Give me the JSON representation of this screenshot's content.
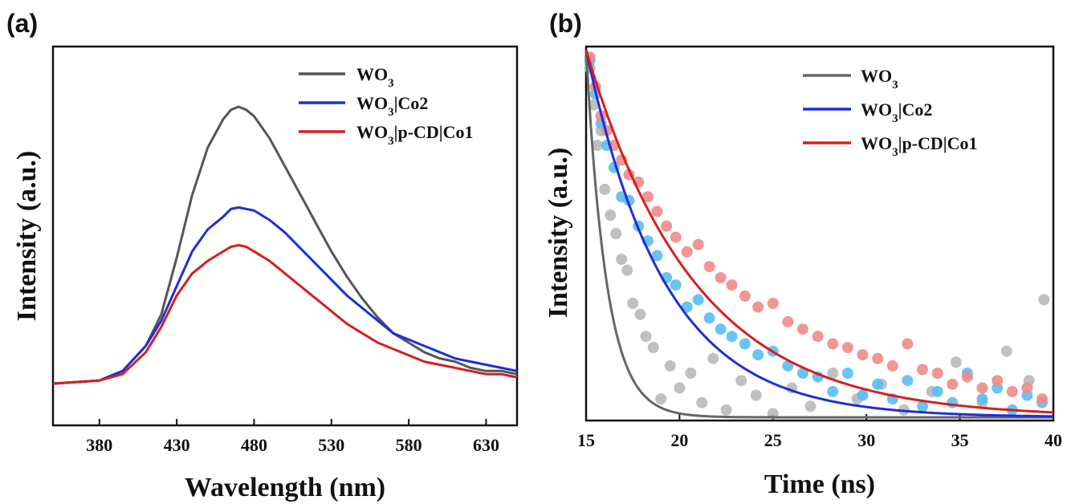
{
  "chart_data": [
    {
      "panel_label": "(a)",
      "type": "line",
      "xlabel": "Wavelength (nm)",
      "ylabel": "Intensity (a.u.)",
      "xlim": [
        350,
        650
      ],
      "ylim": [
        0,
        1.0
      ],
      "xticks": [
        380,
        430,
        480,
        530,
        580,
        630
      ],
      "legend_position": "top-right",
      "series": [
        {
          "name": "WO₃",
          "color": "#555555",
          "x": [
            350,
            380,
            395,
            410,
            420,
            430,
            440,
            450,
            460,
            465,
            470,
            475,
            480,
            490,
            500,
            510,
            520,
            530,
            540,
            550,
            560,
            570,
            580,
            590,
            600,
            610,
            620,
            630,
            640,
            650
          ],
          "y": [
            0.0,
            0.01,
            0.04,
            0.12,
            0.22,
            0.4,
            0.6,
            0.75,
            0.84,
            0.87,
            0.88,
            0.87,
            0.85,
            0.78,
            0.69,
            0.6,
            0.51,
            0.42,
            0.34,
            0.27,
            0.21,
            0.16,
            0.13,
            0.1,
            0.08,
            0.07,
            0.05,
            0.04,
            0.04,
            0.03
          ]
        },
        {
          "name": "WO₃|Co2",
          "color": "#1f2ed6",
          "x": [
            350,
            380,
            395,
            410,
            420,
            430,
            440,
            450,
            460,
            465,
            470,
            475,
            480,
            490,
            500,
            510,
            520,
            530,
            540,
            550,
            560,
            570,
            580,
            590,
            600,
            610,
            620,
            630,
            640,
            650
          ],
          "y": [
            0.0,
            0.01,
            0.04,
            0.12,
            0.2,
            0.31,
            0.42,
            0.49,
            0.53,
            0.555,
            0.56,
            0.555,
            0.55,
            0.52,
            0.48,
            0.43,
            0.38,
            0.33,
            0.28,
            0.24,
            0.2,
            0.16,
            0.14,
            0.12,
            0.1,
            0.08,
            0.07,
            0.06,
            0.05,
            0.04
          ]
        },
        {
          "name": "WO₃|p-CD|Co1",
          "color": "#d61f1f",
          "x": [
            350,
            380,
            395,
            410,
            420,
            430,
            440,
            450,
            460,
            465,
            470,
            475,
            480,
            490,
            500,
            510,
            520,
            530,
            540,
            550,
            560,
            570,
            580,
            590,
            600,
            610,
            620,
            630,
            640,
            650
          ],
          "y": [
            0.0,
            0.01,
            0.03,
            0.1,
            0.18,
            0.28,
            0.35,
            0.39,
            0.42,
            0.435,
            0.44,
            0.435,
            0.42,
            0.39,
            0.35,
            0.31,
            0.27,
            0.23,
            0.19,
            0.16,
            0.13,
            0.11,
            0.09,
            0.07,
            0.06,
            0.05,
            0.04,
            0.03,
            0.03,
            0.02
          ]
        }
      ]
    },
    {
      "panel_label": "(b)",
      "type": "scatter",
      "xlabel": "Time (ns)",
      "ylabel": "Intensity (a.u.)",
      "xlim": [
        15,
        40
      ],
      "ylim": [
        0,
        1.0
      ],
      "xticks": [
        15,
        20,
        25,
        30,
        35,
        40
      ],
      "legend_position": "top-right",
      "series": [
        {
          "name": "WO₃",
          "color": "#666666",
          "point_color": "#b9b9b9",
          "fit_tau": 1.1,
          "x": [
            15.2,
            15.4,
            15.6,
            15.8,
            16.0,
            16.3,
            16.6,
            16.9,
            17.2,
            17.5,
            17.9,
            18.2,
            18.6,
            19.0,
            19.5,
            20.0,
            20.6,
            21.2,
            21.8,
            22.5,
            23.3,
            24.1,
            25.0,
            26.0,
            27.0,
            28.2,
            29.5,
            30.8,
            32.0,
            33.5,
            34.8,
            36.2,
            37.5,
            38.7,
            39.5
          ],
          "y": [
            0.95,
            0.85,
            0.74,
            0.78,
            0.62,
            0.55,
            0.5,
            0.43,
            0.4,
            0.31,
            0.28,
            0.22,
            0.19,
            0.05,
            0.14,
            0.08,
            0.12,
            0.04,
            0.16,
            0.02,
            0.1,
            0.06,
            0.01,
            0.08,
            0.03,
            0.12,
            0.05,
            0.09,
            0.02,
            0.07,
            0.15,
            0.04,
            0.18,
            0.1,
            0.32
          ]
        },
        {
          "name": "WO₃|Co2",
          "color": "#1f2ed6",
          "point_color": "#5bbcf2",
          "fit_tau": 4.2,
          "x": [
            15.2,
            15.5,
            15.8,
            16.1,
            16.5,
            16.9,
            17.3,
            17.8,
            18.3,
            18.8,
            19.3,
            19.8,
            20.4,
            21.0,
            21.6,
            22.2,
            22.8,
            23.5,
            24.2,
            25.0,
            25.8,
            26.6,
            27.4,
            28.2,
            29.0,
            29.8,
            30.6,
            31.4,
            32.2,
            33.0,
            33.8,
            34.6,
            35.4,
            36.2,
            37.0,
            37.8,
            38.6,
            39.4
          ],
          "y": [
            0.97,
            0.88,
            0.8,
            0.74,
            0.68,
            0.6,
            0.59,
            0.52,
            0.48,
            0.44,
            0.38,
            0.36,
            0.3,
            0.32,
            0.27,
            0.24,
            0.22,
            0.2,
            0.17,
            0.18,
            0.14,
            0.12,
            0.11,
            0.07,
            0.12,
            0.06,
            0.09,
            0.05,
            0.1,
            0.03,
            0.07,
            0.04,
            0.12,
            0.05,
            0.08,
            0.02,
            0.06,
            0.04
          ]
        },
        {
          "name": "WO₃|p-CD|Co1",
          "color": "#d61f1f",
          "point_color": "#f08a8a",
          "fit_tau": 5.8,
          "x": [
            15.2,
            15.5,
            15.8,
            16.1,
            16.5,
            16.9,
            17.3,
            17.8,
            18.3,
            18.8,
            19.3,
            19.8,
            20.4,
            21.0,
            21.6,
            22.2,
            22.8,
            23.5,
            24.2,
            25.0,
            25.8,
            26.6,
            27.4,
            28.2,
            29.0,
            29.8,
            30.6,
            31.4,
            32.2,
            33.0,
            33.8,
            34.6,
            35.4,
            36.2,
            37.0,
            37.8,
            38.6,
            39.4
          ],
          "y": [
            0.98,
            0.9,
            0.82,
            0.78,
            0.74,
            0.7,
            0.66,
            0.64,
            0.6,
            0.56,
            0.52,
            0.49,
            0.45,
            0.47,
            0.41,
            0.38,
            0.36,
            0.33,
            0.3,
            0.31,
            0.26,
            0.24,
            0.22,
            0.2,
            0.19,
            0.17,
            0.16,
            0.14,
            0.2,
            0.13,
            0.12,
            0.09,
            0.11,
            0.08,
            0.1,
            0.07,
            0.08,
            0.05
          ]
        }
      ]
    }
  ]
}
